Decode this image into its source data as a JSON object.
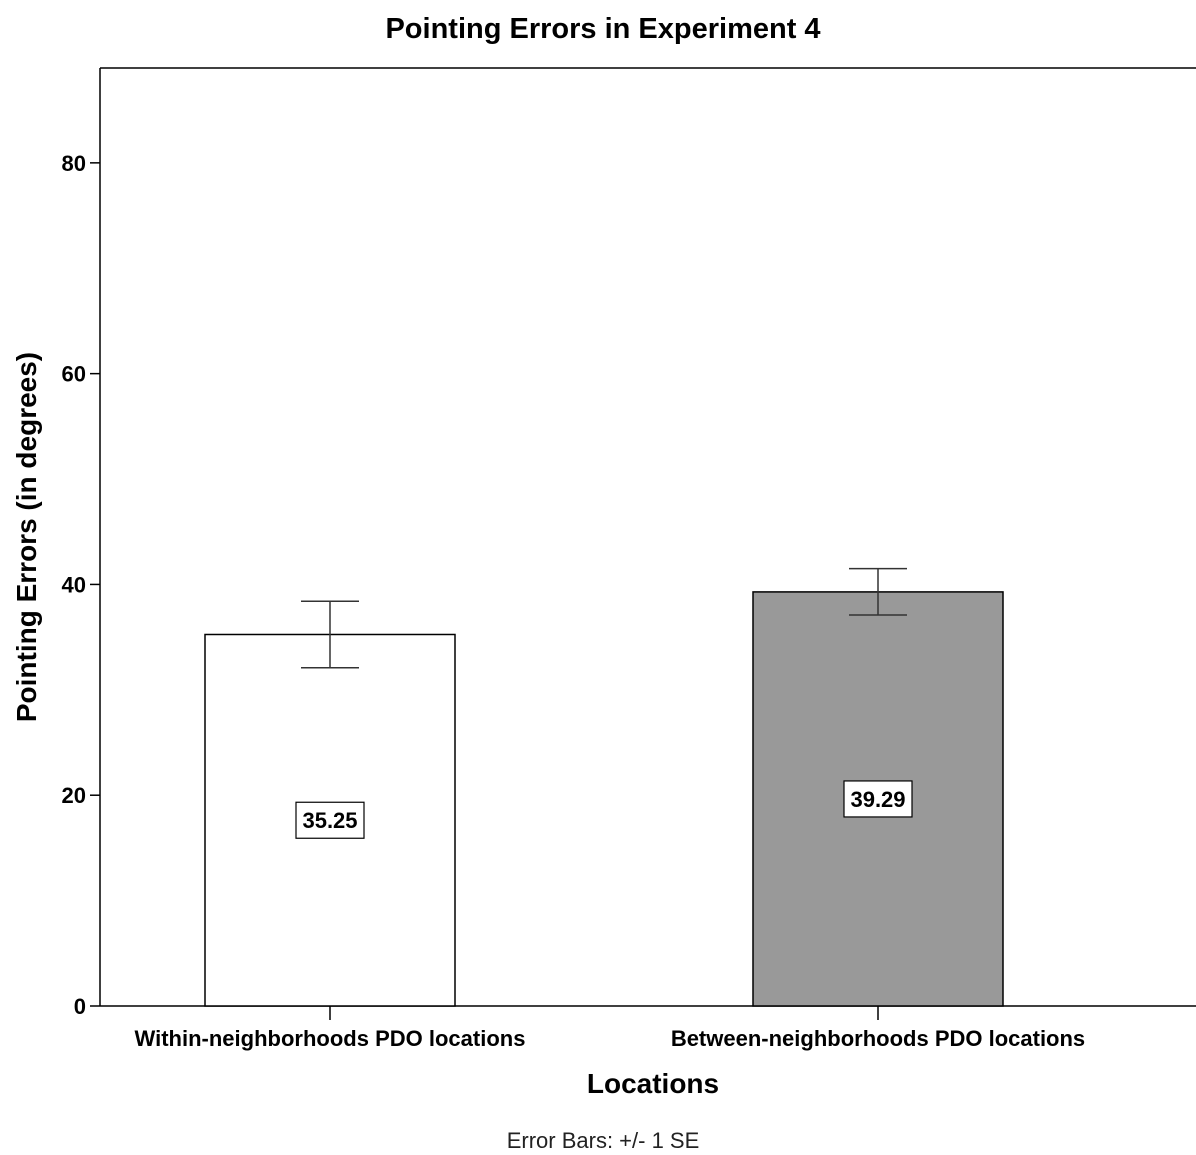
{
  "chart_data": {
    "type": "bar",
    "title": "Pointing Errors in Experiment 4",
    "xlabel": "Locations",
    "ylabel": "Pointing Errors (in degrees)",
    "ylim": [
      0,
      89
    ],
    "yticks": [
      0,
      20,
      40,
      60,
      80
    ],
    "categories": [
      "Within-neighborhoods PDO locations",
      "Between-neighborhoods PDO locations"
    ],
    "values": [
      35.25,
      39.29
    ],
    "data_labels": [
      "35.25",
      "39.29"
    ],
    "error_bars": {
      "type": "+/- 1 SE",
      "lower": [
        32.1,
        37.1
      ],
      "upper": [
        38.4,
        41.5
      ]
    },
    "bar_colors": [
      "#ffffff",
      "#999999"
    ],
    "grid": false,
    "legend": "none",
    "footnote": "Error Bars: +/- 1 SE"
  }
}
